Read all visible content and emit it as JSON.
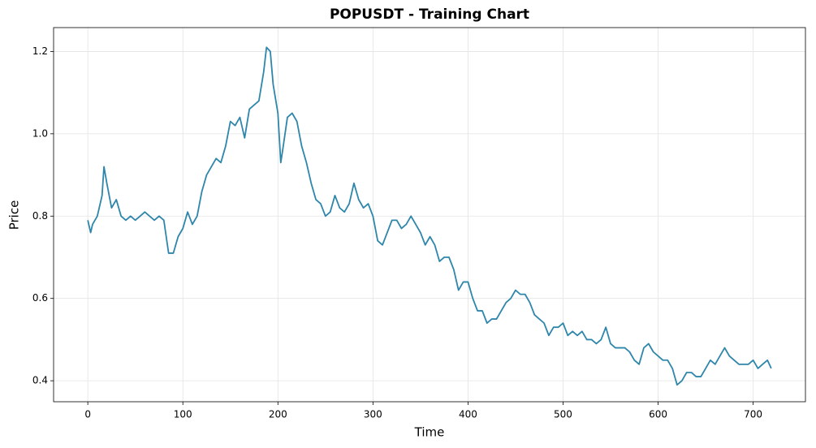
{
  "chart_data": {
    "type": "line",
    "title": "POPUSDT - Training Chart",
    "x_label": "Time",
    "y_label": "Price",
    "grid": true,
    "xlim": [
      -36,
      755
    ],
    "ylim": [
      0.349,
      1.258
    ],
    "xticks": [
      0,
      100,
      200,
      300,
      400,
      500,
      600,
      700
    ],
    "yticks": [
      0.4,
      0.6,
      0.8,
      {
        "value": 1,
        "label": "1.0"
      },
      1.2
    ],
    "x": [
      0,
      3,
      5,
      10,
      15,
      17,
      20,
      25,
      30,
      35,
      40,
      45,
      50,
      55,
      60,
      65,
      70,
      75,
      80,
      85,
      90,
      95,
      100,
      105,
      110,
      115,
      120,
      125,
      130,
      135,
      140,
      145,
      150,
      155,
      160,
      165,
      170,
      175,
      180,
      185,
      188,
      192,
      195,
      200,
      203,
      205,
      210,
      215,
      220,
      225,
      230,
      235,
      240,
      245,
      250,
      255,
      260,
      265,
      270,
      275,
      280,
      285,
      290,
      295,
      300,
      305,
      310,
      315,
      320,
      325,
      330,
      335,
      340,
      345,
      350,
      355,
      360,
      365,
      370,
      375,
      380,
      385,
      390,
      395,
      400,
      405,
      410,
      415,
      420,
      425,
      430,
      435,
      440,
      445,
      450,
      455,
      460,
      465,
      470,
      475,
      480,
      485,
      490,
      495,
      500,
      505,
      510,
      515,
      520,
      525,
      530,
      535,
      540,
      545,
      550,
      555,
      560,
      565,
      570,
      575,
      580,
      585,
      590,
      595,
      600,
      605,
      610,
      615,
      620,
      625,
      630,
      635,
      640,
      645,
      650,
      655,
      660,
      665,
      670,
      675,
      680,
      685,
      690,
      695,
      700,
      705,
      710,
      715,
      719
    ],
    "series": [
      {
        "color": "#2e86ab",
        "values": [
          0.79,
          0.76,
          0.78,
          0.8,
          0.85,
          0.92,
          0.88,
          0.82,
          0.84,
          0.8,
          0.79,
          0.8,
          0.79,
          0.8,
          0.81,
          0.8,
          0.79,
          0.8,
          0.79,
          0.71,
          0.71,
          0.75,
          0.77,
          0.81,
          0.78,
          0.8,
          0.86,
          0.9,
          0.92,
          0.94,
          0.93,
          0.97,
          1.03,
          1.02,
          1.04,
          0.99,
          1.06,
          1.07,
          1.08,
          1.15,
          1.21,
          1.2,
          1.12,
          1.05,
          0.93,
          0.96,
          1.04,
          1.05,
          1.03,
          0.97,
          0.93,
          0.88,
          0.84,
          0.83,
          0.8,
          0.81,
          0.85,
          0.82,
          0.81,
          0.83,
          0.88,
          0.84,
          0.82,
          0.83,
          0.8,
          0.74,
          0.73,
          0.76,
          0.79,
          0.79,
          0.77,
          0.78,
          0.8,
          0.78,
          0.76,
          0.73,
          0.75,
          0.73,
          0.69,
          0.7,
          0.7,
          0.67,
          0.62,
          0.64,
          0.64,
          0.6,
          0.57,
          0.57,
          0.54,
          0.55,
          0.55,
          0.57,
          0.59,
          0.6,
          0.62,
          0.61,
          0.61,
          0.59,
          0.56,
          0.55,
          0.54,
          0.51,
          0.53,
          0.53,
          0.54,
          0.51,
          0.52,
          0.51,
          0.52,
          0.5,
          0.5,
          0.49,
          0.5,
          0.53,
          0.49,
          0.48,
          0.48,
          0.48,
          0.47,
          0.45,
          0.44,
          0.48,
          0.49,
          0.47,
          0.46,
          0.45,
          0.45,
          0.43,
          0.39,
          0.4,
          0.42,
          0.42,
          0.41,
          0.41,
          0.43,
          0.45,
          0.44,
          0.46,
          0.48,
          0.46,
          0.45,
          0.44,
          0.44,
          0.44,
          0.45,
          0.43,
          0.44,
          0.45,
          0.43
        ]
      }
    ]
  }
}
